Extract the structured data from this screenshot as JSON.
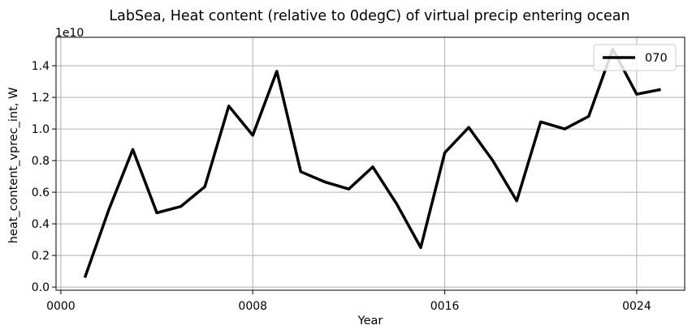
{
  "chart_data": {
    "type": "line",
    "title": "LabSea, Heat content (relative to 0degC) of virtual precip entering ocean",
    "xlabel": "Year",
    "ylabel": "heat_content_vprec_int, W",
    "y_offset_label": "1e10",
    "xlim": [
      -0.2,
      26.0
    ],
    "ylim": [
      -0.02,
      1.58
    ],
    "y_scale_factor": 10000000000,
    "x_ticks": [
      {
        "value": 0,
        "label": "0000"
      },
      {
        "value": 8,
        "label": "0008"
      },
      {
        "value": 16,
        "label": "0016"
      },
      {
        "value": 24,
        "label": "0024"
      }
    ],
    "y_ticks": [
      {
        "value": 0.0,
        "label": "0.0"
      },
      {
        "value": 0.2,
        "label": "0.2"
      },
      {
        "value": 0.4,
        "label": "0.4"
      },
      {
        "value": 0.6,
        "label": "0.6"
      },
      {
        "value": 0.8,
        "label": "0.8"
      },
      {
        "value": 1.0,
        "label": "1.0"
      },
      {
        "value": 1.2,
        "label": "1.2"
      },
      {
        "value": 1.4,
        "label": "1.4"
      }
    ],
    "grid": true,
    "legend_position": "top-right",
    "series": [
      {
        "name": "070",
        "color": "#000000",
        "x": [
          1,
          2,
          3,
          4,
          5,
          6,
          7,
          8,
          9,
          10,
          11,
          12,
          13,
          14,
          15,
          16,
          17,
          18,
          19,
          20,
          21,
          22,
          23,
          24,
          25
        ],
        "y": [
          0.06,
          0.49,
          0.87,
          0.47,
          0.51,
          0.635,
          1.145,
          0.96,
          1.365,
          0.73,
          0.665,
          0.62,
          0.76,
          0.525,
          0.25,
          0.85,
          1.01,
          0.8,
          0.545,
          1.045,
          1.0,
          1.08,
          1.505,
          1.22,
          1.25
        ]
      }
    ]
  }
}
